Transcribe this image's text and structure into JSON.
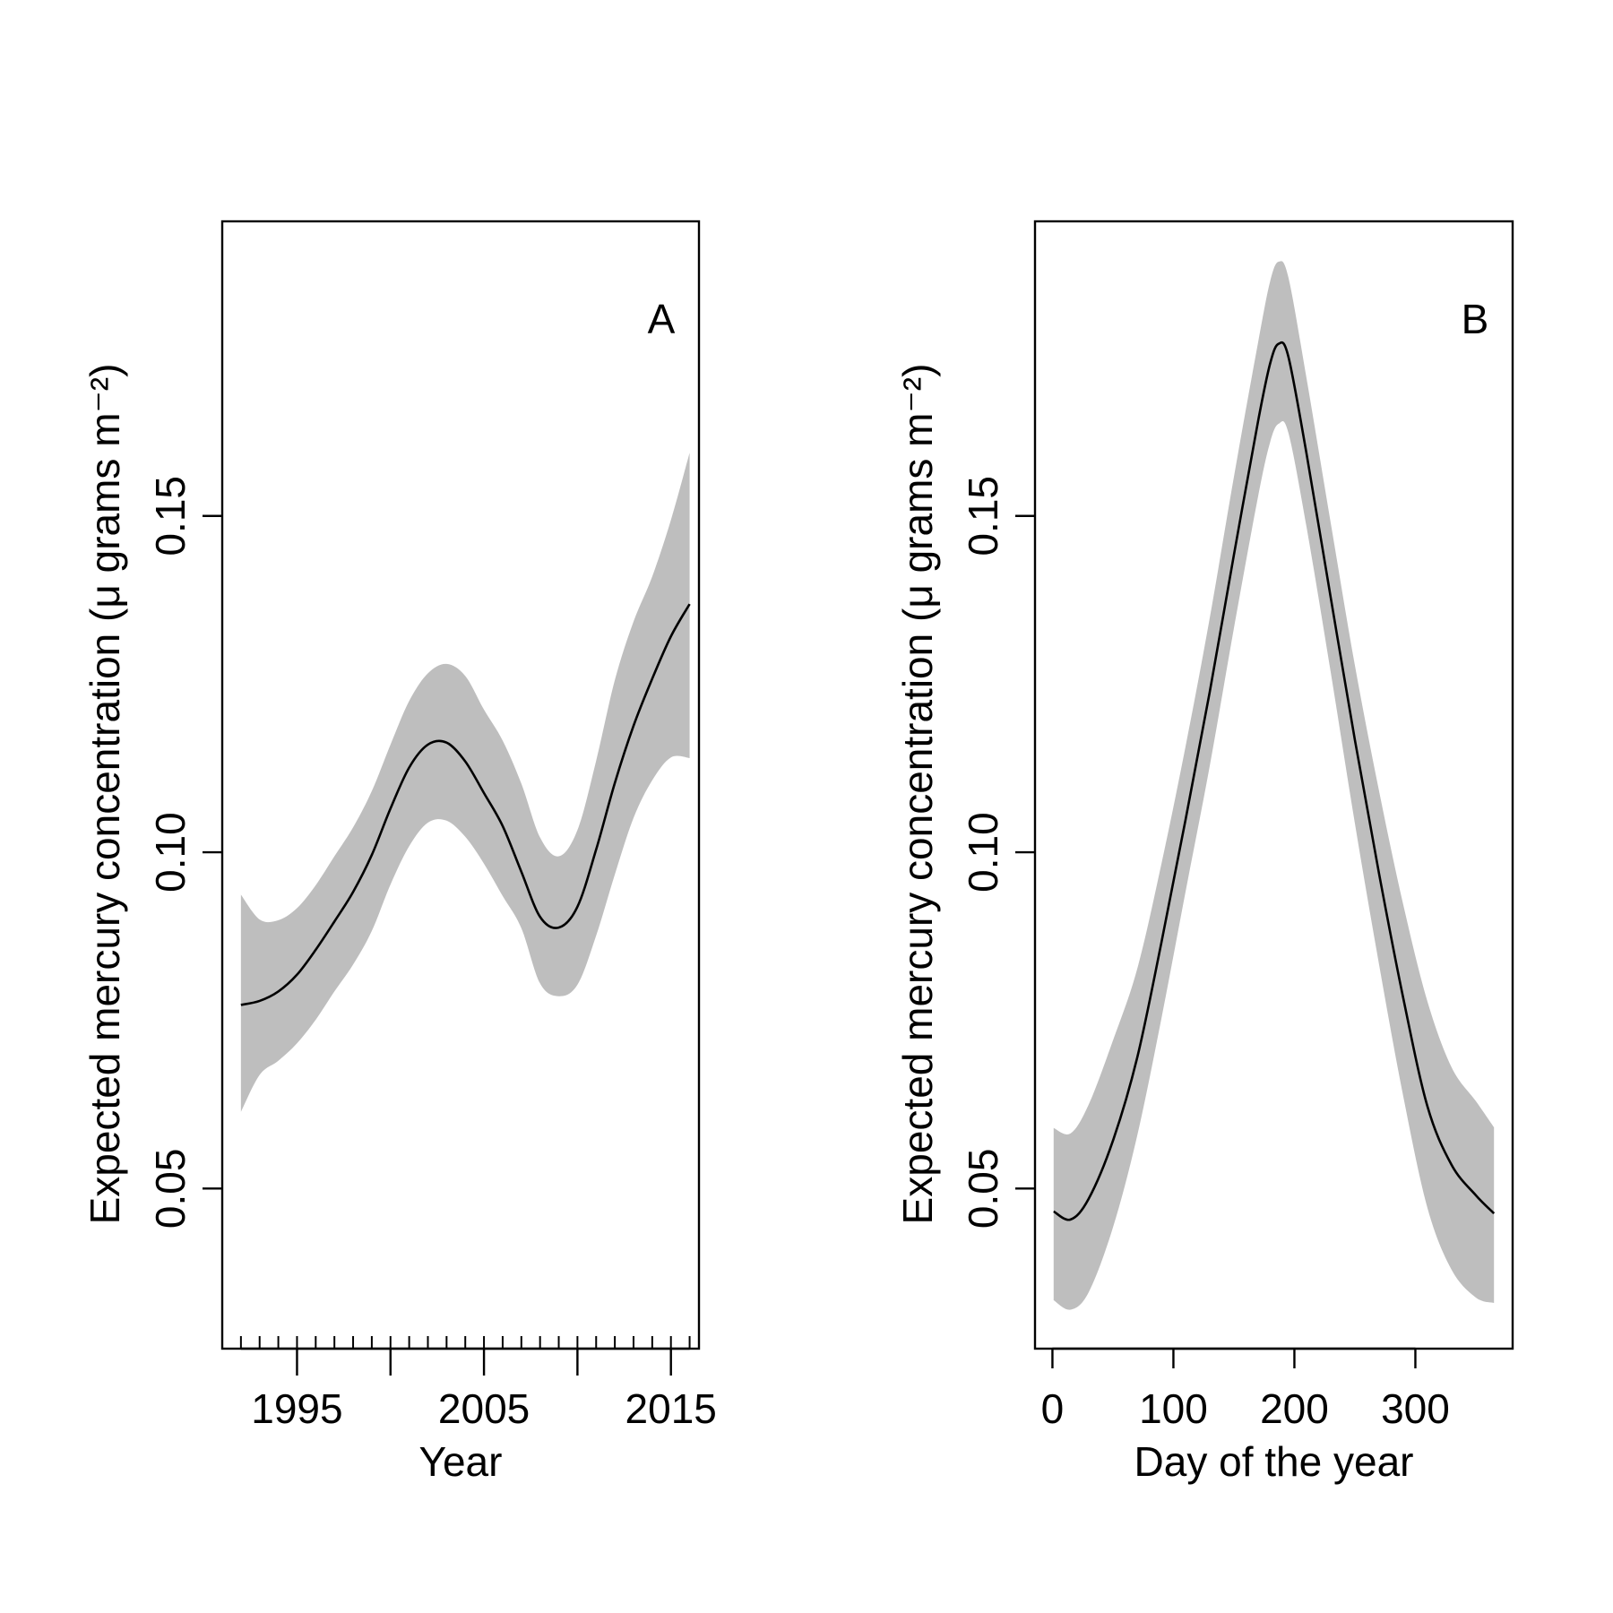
{
  "chart_data": [
    {
      "type": "line",
      "panel_label": "A",
      "xlabel": "Year",
      "ylabel": "Expected mercury concentration (μ grams m⁻²)",
      "xlim": [
        1991,
        2016.5
      ],
      "ylim": [
        0.0262,
        0.1938
      ],
      "x_ticks": [
        1995,
        2005,
        2015
      ],
      "x_minor_ticks": [
        1992,
        1993,
        1994,
        1995,
        1996,
        1997,
        1998,
        1999,
        2000,
        2001,
        2002,
        2003,
        2004,
        2005,
        2006,
        2007,
        2008,
        2009,
        2010,
        2011,
        2012,
        2013,
        2014,
        2015,
        2016
      ],
      "y_ticks": [
        0.05,
        0.1,
        0.15
      ],
      "y_tick_labels": [
        "0.05",
        "0.10",
        "0.15"
      ],
      "band_color": "#bebebe",
      "line_color": "#000000",
      "x": [
        1992,
        1993,
        1994,
        1995,
        1996,
        1997,
        1998,
        1999,
        2000,
        2001,
        2002,
        2003,
        2004,
        2005,
        2006,
        2007,
        2008,
        2009,
        2010,
        2011,
        2012,
        2013,
        2014,
        2015,
        2016
      ],
      "fit": [
        0.0773,
        0.0779,
        0.0793,
        0.0818,
        0.0855,
        0.0897,
        0.0941,
        0.0996,
        0.1065,
        0.1126,
        0.116,
        0.1163,
        0.1135,
        0.1088,
        0.1039,
        0.0971,
        0.0904,
        0.0888,
        0.0919,
        0.1004,
        0.1103,
        0.1188,
        0.1258,
        0.1321,
        0.1369
      ],
      "lower": [
        0.0614,
        0.0669,
        0.069,
        0.0716,
        0.0751,
        0.0793,
        0.0833,
        0.0883,
        0.0952,
        0.1009,
        0.1044,
        0.1047,
        0.1023,
        0.0983,
        0.0935,
        0.0887,
        0.0805,
        0.0786,
        0.0803,
        0.0876,
        0.0967,
        0.1051,
        0.1107,
        0.1141,
        0.114
      ],
      "upper": [
        0.0937,
        0.09,
        0.0899,
        0.0917,
        0.0951,
        0.0994,
        0.1037,
        0.1091,
        0.116,
        0.1225,
        0.1266,
        0.128,
        0.1262,
        0.1212,
        0.1166,
        0.1102,
        0.1022,
        0.0994,
        0.1033,
        0.1136,
        0.1256,
        0.1343,
        0.141,
        0.1494,
        0.1594
      ]
    },
    {
      "type": "line",
      "panel_label": "B",
      "xlabel": "Day of the year",
      "ylabel": "Expected mercury concentration (μ grams m⁻²)",
      "xlim": [
        -14.4,
        380.4
      ],
      "ylim": [
        0.0262,
        0.1938
      ],
      "x_ticks": [
        0,
        100,
        200,
        300
      ],
      "y_ticks": [
        0.05,
        0.1,
        0.15
      ],
      "y_tick_labels": [
        "0.05",
        "0.10",
        "0.15"
      ],
      "band_color": "#bebebe",
      "line_color": "#000000",
      "x": [
        1,
        15,
        30,
        50,
        70,
        90,
        110,
        130,
        150,
        170,
        180,
        187,
        195,
        210,
        230,
        250,
        270,
        290,
        310,
        330,
        350,
        365
      ],
      "fit": [
        0.0466,
        0.0454,
        0.0485,
        0.0571,
        0.0694,
        0.0865,
        0.1048,
        0.1238,
        0.1442,
        0.1641,
        0.1727,
        0.1756,
        0.1737,
        0.1593,
        0.1379,
        0.1167,
        0.0968,
        0.0783,
        0.0622,
        0.0535,
        0.049,
        0.0463
      ],
      "lower": [
        0.0334,
        0.032,
        0.0346,
        0.0442,
        0.0578,
        0.0752,
        0.0941,
        0.1128,
        0.1333,
        0.1529,
        0.161,
        0.1637,
        0.1624,
        0.1484,
        0.1268,
        0.1043,
        0.0833,
        0.0637,
        0.0471,
        0.0379,
        0.0338,
        0.033
      ],
      "upper": [
        0.059,
        0.0582,
        0.0625,
        0.072,
        0.0826,
        0.0982,
        0.1157,
        0.1348,
        0.1558,
        0.1758,
        0.1849,
        0.1878,
        0.1855,
        0.1705,
        0.149,
        0.1278,
        0.1091,
        0.0922,
        0.0778,
        0.068,
        0.063,
        0.0591
      ]
    }
  ]
}
